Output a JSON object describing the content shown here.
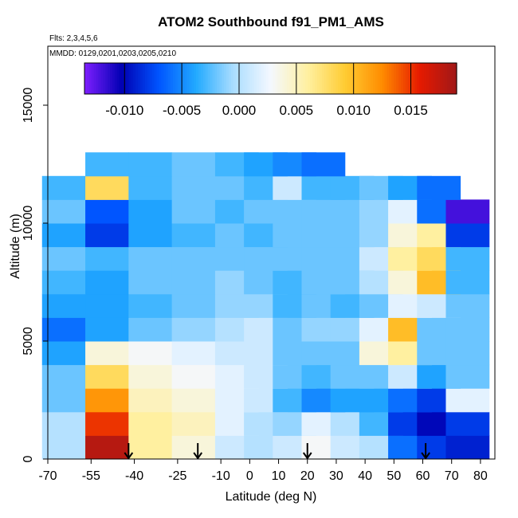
{
  "title": "ATOM2 Southbound f91_PM1_AMS",
  "flights_note": "Flts: 2,3,4,5,6",
  "dates_note": "MMDD: 0129,0201,0203,0205,0210",
  "chart_data": {
    "type": "heatmap",
    "title": "ATOM2 Southbound f91_PM1_AMS",
    "xlabel": "Latitude (deg N)",
    "ylabel": "Altitude (m)",
    "xlim": [
      -70,
      85
    ],
    "ylim": [
      0,
      17500
    ],
    "x_ticks": [
      -70,
      -55,
      -40,
      -25,
      -10,
      0,
      10,
      20,
      30,
      40,
      50,
      60,
      70,
      80
    ],
    "x_tick_labels": [
      "-70",
      "-55",
      "-40",
      "-25",
      "-10",
      "0",
      "10",
      "20",
      "30",
      "40",
      "50",
      "60",
      "70",
      "80"
    ],
    "y_ticks": [
      0,
      5000,
      10000,
      15000
    ],
    "y_tick_labels": [
      "0",
      "5000",
      "10000",
      "15000"
    ],
    "colorbar": {
      "range": [
        -0.0135,
        0.019
      ],
      "ticks": [
        -0.01,
        -0.005,
        0.0,
        0.005,
        0.01,
        0.015
      ],
      "tick_labels": [
        "-0.010",
        "-0.005",
        "0.000",
        "0.005",
        "0.010",
        "0.015"
      ],
      "colors": [
        "#7f1fff",
        "#0000b3",
        "#0055ff",
        "#22aaff",
        "#aaddff",
        "#f4f8ff",
        "#fff0a0",
        "#ffcc33",
        "#ff8c00",
        "#e61a00",
        "#a01818"
      ]
    },
    "arrow_latitudes": [
      -42,
      -18,
      20,
      61
    ],
    "bins_latitude": [
      -70,
      -55,
      -40,
      -25,
      -10,
      0,
      10,
      20,
      30,
      40,
      50,
      60,
      70
    ],
    "bins_altitude": [
      0,
      1000,
      2000,
      3000,
      4000,
      5000,
      6000,
      7000,
      8000,
      9000,
      10000,
      11000,
      12000
    ],
    "values_approx": [
      [
        0.0,
        0.018,
        0.006,
        0.004,
        0.001,
        0.0,
        0.001,
        0.003,
        0.001,
        0.0,
        -0.006,
        -0.008,
        -0.009
      ],
      [
        0.0,
        0.015,
        0.006,
        0.005,
        0.002,
        0.0,
        -0.001,
        0.002,
        0.0,
        -0.003,
        -0.008,
        -0.01,
        -0.008
      ],
      [
        -0.002,
        0.012,
        0.005,
        0.004,
        0.002,
        0.001,
        -0.003,
        -0.005,
        -0.004,
        -0.004,
        -0.006,
        -0.008,
        0.002
      ],
      [
        -0.002,
        0.008,
        0.004,
        0.003,
        0.002,
        0.001,
        -0.002,
        -0.003,
        -0.002,
        -0.002,
        0.001,
        -0.004,
        -0.002
      ],
      [
        -0.004,
        0.004,
        0.003,
        0.002,
        0.001,
        0.001,
        -0.002,
        -0.002,
        -0.002,
        0.004,
        0.006,
        -0.002,
        -0.002
      ],
      [
        -0.006,
        -0.004,
        -0.002,
        -0.001,
        0.0,
        0.001,
        -0.002,
        -0.001,
        -0.001,
        0.002,
        0.01,
        -0.002,
        -0.002
      ],
      [
        -0.004,
        -0.004,
        -0.003,
        -0.002,
        -0.001,
        -0.001,
        -0.003,
        -0.002,
        -0.003,
        -0.002,
        0.002,
        0.001,
        -0.002
      ],
      [
        -0.003,
        -0.004,
        -0.002,
        -0.002,
        -0.001,
        -0.002,
        -0.003,
        -0.002,
        -0.002,
        0.0,
        0.004,
        0.01,
        -0.003
      ],
      [
        -0.002,
        -0.003,
        -0.002,
        -0.002,
        -0.002,
        -0.002,
        -0.002,
        -0.002,
        -0.002,
        0.001,
        0.006,
        0.008,
        -0.003
      ],
      [
        -0.004,
        -0.008,
        -0.004,
        -0.003,
        -0.002,
        -0.003,
        -0.002,
        -0.002,
        -0.002,
        -0.001,
        0.004,
        0.006,
        -0.008
      ],
      [
        -0.002,
        -0.007,
        -0.004,
        -0.002,
        -0.003,
        -0.002,
        -0.002,
        -0.002,
        -0.002,
        -0.001,
        0.002,
        -0.006,
        -0.012
      ],
      [
        -0.003,
        0.008,
        -0.003,
        -0.002,
        -0.002,
        -0.003,
        0.001,
        -0.003,
        -0.003,
        -0.002,
        -0.004,
        -0.006,
        null
      ],
      [
        null,
        -0.003,
        -0.003,
        -0.002,
        -0.003,
        -0.004,
        -0.005,
        -0.006,
        null,
        null,
        null,
        null,
        null
      ]
    ]
  }
}
